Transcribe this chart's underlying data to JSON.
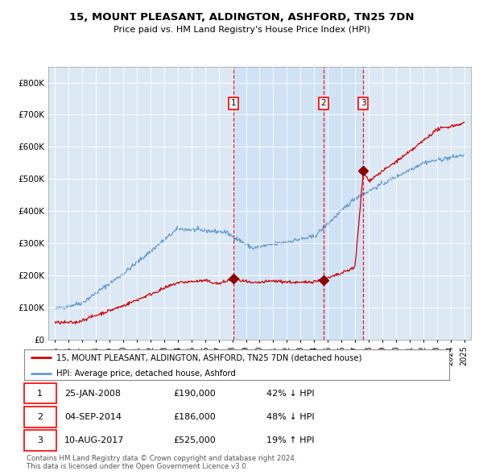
{
  "title": "15, MOUNT PLEASANT, ALDINGTON, ASHFORD, TN25 7DN",
  "subtitle": "Price paid vs. HM Land Registry's House Price Index (HPI)",
  "background_color": "#dce9f5",
  "plot_bg_color": "#dce9f5",
  "outer_bg_color": "#ffffff",
  "red_color": "#cc0000",
  "blue_color": "#6699cc",
  "highlight_color": "#cce0f5",
  "ylim": [
    0,
    850000
  ],
  "xlim": [
    1994.5,
    2025.5
  ],
  "yticks": [
    0,
    100000,
    200000,
    300000,
    400000,
    500000,
    600000,
    700000,
    800000
  ],
  "ytick_labels": [
    "£0",
    "£100K",
    "£200K",
    "£300K",
    "£400K",
    "£500K",
    "£600K",
    "£700K",
    "£800K"
  ],
  "sale_dates_num": [
    2008.07,
    2014.67,
    2017.61
  ],
  "sale_prices": [
    190000,
    186000,
    525000
  ],
  "sale_labels": [
    "1",
    "2",
    "3"
  ],
  "legend_entries": [
    "15, MOUNT PLEASANT, ALDINGTON, ASHFORD, TN25 7DN (detached house)",
    "HPI: Average price, detached house, Ashford"
  ],
  "table_data": [
    [
      "1",
      "25-JAN-2008",
      "£190,000",
      "42% ↓ HPI"
    ],
    [
      "2",
      "04-SEP-2014",
      "£186,000",
      "48% ↓ HPI"
    ],
    [
      "3",
      "10-AUG-2017",
      "£525,000",
      "19% ↑ HPI"
    ]
  ],
  "footnote": "Contains HM Land Registry data © Crown copyright and database right 2024.\nThis data is licensed under the Open Government Licence v3.0."
}
